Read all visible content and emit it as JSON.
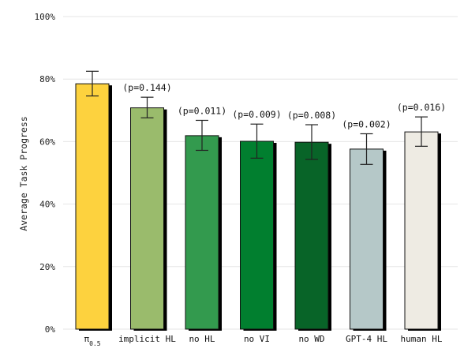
{
  "chart_data": {
    "type": "bar",
    "title": "",
    "xlabel": "",
    "ylabel": "Average Task Progress",
    "ylim": [
      0,
      100
    ],
    "yticks": [
      0,
      20,
      40,
      60,
      80,
      100
    ],
    "ytick_labels": [
      "0%",
      "20%",
      "40%",
      "60%",
      "80%",
      "100%"
    ],
    "grid": "horizontal",
    "categories": [
      {
        "base": "π",
        "sub": "0.5"
      },
      {
        "base": "implicit HL",
        "sub": ""
      },
      {
        "base": "no HL",
        "sub": ""
      },
      {
        "base": "no VI",
        "sub": ""
      },
      {
        "base": "no WD",
        "sub": ""
      },
      {
        "base": "GPT-4 HL",
        "sub": ""
      },
      {
        "base": "human HL",
        "sub": ""
      }
    ],
    "values": [
      78.5,
      70.8,
      61.9,
      60.1,
      59.8,
      57.6,
      63.1
    ],
    "error_low": [
      74.6,
      67.6,
      57.2,
      54.7,
      54.3,
      52.7,
      58.5
    ],
    "error_high": [
      82.5,
      74.2,
      66.8,
      65.6,
      65.4,
      62.5,
      67.9
    ],
    "annotations": [
      "",
      "(p=0.144)",
      "(p=0.011)",
      "(p=0.009)",
      "(p=0.008)",
      "(p=0.002)",
      "(p=0.016)"
    ],
    "colors": [
      "#fdd23e",
      "#9abb6c",
      "#339a4e",
      "#017f2f",
      "#086428",
      "#b5c8c8",
      "#eeebe3"
    ],
    "shadow_color": "#000000"
  }
}
